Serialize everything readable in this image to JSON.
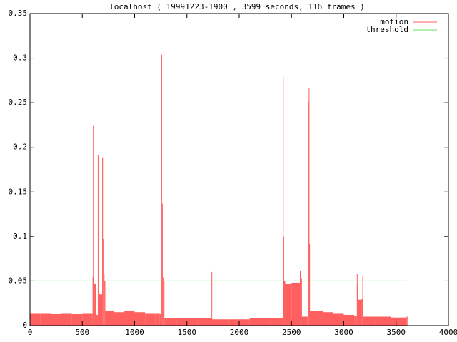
{
  "chart_data": {
    "type": "line",
    "title": "localhost ( 19991223-1900 , 3599 seconds, 116 frames )",
    "xlim": [
      0,
      4000
    ],
    "xticks": [
      0,
      500,
      1000,
      1500,
      2000,
      2500,
      3000,
      3500,
      4000
    ],
    "ylim": [
      0,
      0.35
    ],
    "yticks": [
      0,
      0.05,
      0.1,
      0.15,
      0.2,
      0.25,
      0.3,
      0.35
    ],
    "legend": "top-right",
    "series": [
      {
        "name": "motion",
        "color": "#ff5f5f",
        "style": "impulses",
        "x": [
          0,
          100,
          200,
          300,
          400,
          500,
          590,
          598,
          602,
          606,
          615,
          630,
          648,
          655,
          690,
          698,
          705,
          712,
          720,
          800,
          900,
          1000,
          1100,
          1200,
          1240,
          1255,
          1262,
          1268,
          1275,
          1285,
          1400,
          1600,
          1730,
          1735,
          1740,
          1900,
          2100,
          2300,
          2410,
          2418,
          2423,
          2428,
          2440,
          2500,
          2560,
          2580,
          2590,
          2600,
          2650,
          2658,
          2665,
          2670,
          2675,
          2800,
          2900,
          3000,
          3100,
          3125,
          3130,
          3140,
          3170,
          3178,
          3185,
          3300,
          3450,
          3599
        ],
        "values": [
          0.014,
          0.014,
          0.013,
          0.014,
          0.013,
          0.014,
          0.014,
          0.054,
          0.224,
          0.026,
          0.047,
          0.012,
          0.191,
          0.035,
          0.188,
          0.097,
          0.058,
          0.05,
          0.016,
          0.015,
          0.016,
          0.015,
          0.014,
          0.014,
          0.013,
          0.304,
          0.137,
          0.054,
          0.05,
          0.008,
          0.008,
          0.008,
          0.008,
          0.06,
          0.007,
          0.007,
          0.008,
          0.008,
          0.008,
          0.279,
          0.1,
          0.05,
          0.047,
          0.048,
          0.048,
          0.061,
          0.053,
          0.01,
          0.01,
          0.251,
          0.266,
          0.092,
          0.016,
          0.015,
          0.014,
          0.012,
          0.011,
          0.058,
          0.045,
          0.029,
          0.03,
          0.056,
          0.01,
          0.01,
          0.009,
          0.01
        ]
      },
      {
        "name": "threshold",
        "color": "#66e066",
        "style": "lines",
        "x": [
          0,
          3599
        ],
        "values": [
          0.05,
          0.05
        ]
      }
    ]
  }
}
